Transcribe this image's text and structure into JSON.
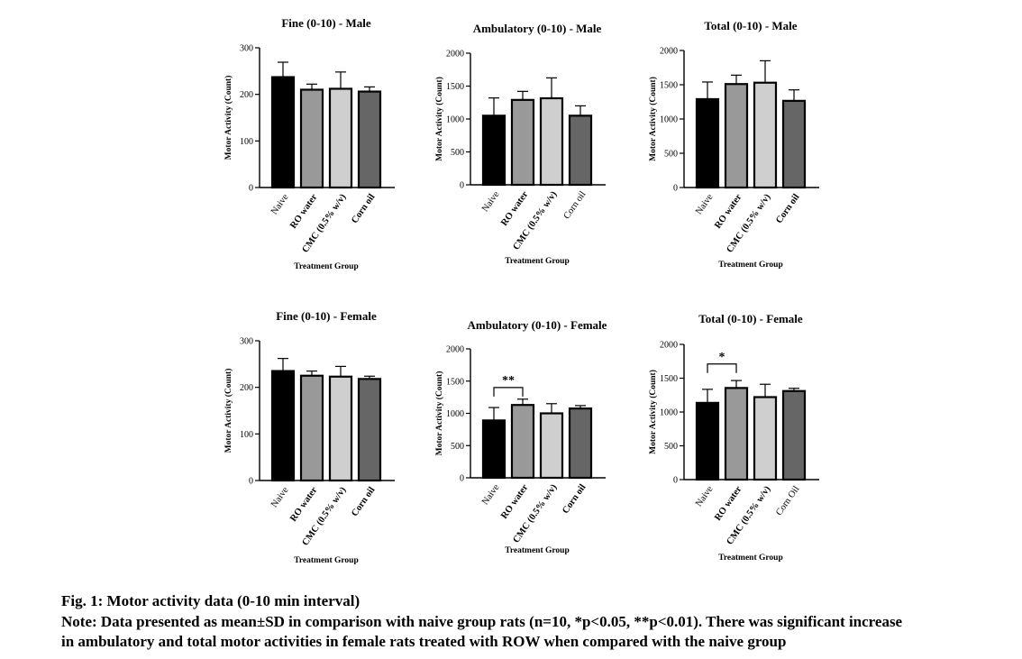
{
  "chart_data": [
    {
      "type": "bar",
      "title": "Fine (0-10) - Male",
      "xlabel": "Treatment Group",
      "ylabel": "Motor Activity (Count)",
      "ylim": [
        0,
        300
      ],
      "yticks": [
        "0",
        "100",
        "200",
        "300"
      ],
      "categories": [
        "Naive",
        "RO water",
        "CMC (0.5% w/v)",
        "Corn oil"
      ],
      "category_weights": [
        "normal",
        "bold",
        "bold",
        "bold"
      ],
      "values": [
        237,
        210,
        212,
        206
      ],
      "errors": [
        32,
        12,
        36,
        10
      ],
      "colors": [
        "#000000",
        "#999999",
        "#cfcfcf",
        "#666666"
      ],
      "significance": []
    },
    {
      "type": "bar",
      "title": "Ambulatory (0-10) - Male",
      "xlabel": "Treatment Group",
      "ylabel": "Motor Activity (Count)",
      "ylim": [
        0,
        2000
      ],
      "yticks": [
        "0",
        "500",
        "1000",
        "1500",
        "2000"
      ],
      "categories": [
        "Naive",
        "RO water",
        "CMC (0.5% w/v)",
        "Corn oil"
      ],
      "category_weights": [
        "normal",
        "bold",
        "bold",
        "normal"
      ],
      "values": [
        1050,
        1290,
        1315,
        1050
      ],
      "errors": [
        270,
        130,
        310,
        150
      ],
      "colors": [
        "#000000",
        "#999999",
        "#cfcfcf",
        "#666666"
      ],
      "significance": []
    },
    {
      "type": "bar",
      "title": "Total (0-10) - Male",
      "xlabel": "Treatment Group",
      "ylabel": "Motor Activity (Count)",
      "ylim": [
        0,
        2000
      ],
      "yticks": [
        "0",
        "500",
        "1000",
        "1500",
        "2000"
      ],
      "categories": [
        "Naive",
        "RO water",
        "CMC (0.5% w/v)",
        "Corn oil"
      ],
      "category_weights": [
        "normal",
        "bold",
        "bold",
        "bold"
      ],
      "values": [
        1290,
        1510,
        1530,
        1265
      ],
      "errors": [
        250,
        130,
        320,
        160
      ],
      "colors": [
        "#000000",
        "#999999",
        "#cfcfcf",
        "#666666"
      ],
      "significance": []
    },
    {
      "type": "bar",
      "title": "Fine (0-10) - Female",
      "xlabel": "Treatment Group",
      "ylabel": "Motor Activity (Count)",
      "ylim": [
        0,
        300
      ],
      "yticks": [
        "0",
        "100",
        "200",
        "300"
      ],
      "categories": [
        "Naive",
        "RO water",
        "CMC (0.5% w/v)",
        "Corn oil"
      ],
      "category_weights": [
        "normal",
        "bold",
        "bold",
        "bold"
      ],
      "values": [
        235,
        225,
        223,
        218
      ],
      "errors": [
        27,
        10,
        22,
        6
      ],
      "colors": [
        "#000000",
        "#999999",
        "#cfcfcf",
        "#666666"
      ],
      "significance": []
    },
    {
      "type": "bar",
      "title": "Ambulatory (0-10) - Female",
      "xlabel": "Treatment Group",
      "ylabel": "Motor Activity (Count)",
      "ylim": [
        0,
        2000
      ],
      "yticks": [
        "0",
        "500",
        "1000",
        "1500",
        "2000"
      ],
      "categories": [
        "Naive",
        "RO water",
        "CMC (0.5% w/v)",
        "Corn oil"
      ],
      "category_weights": [
        "normal",
        "bold",
        "bold",
        "bold"
      ],
      "values": [
        890,
        1130,
        1000,
        1075
      ],
      "errors": [
        200,
        90,
        150,
        45
      ],
      "colors": [
        "#000000",
        "#999999",
        "#cfcfcf",
        "#666666"
      ],
      "significance": [
        {
          "from": 0,
          "to": 1,
          "label": "**",
          "level": 1400
        }
      ]
    },
    {
      "type": "bar",
      "title": "Total (0-10) - Female",
      "xlabel": "Treatment Group",
      "ylabel": "Motor Activity (Count)",
      "ylim": [
        0,
        2000
      ],
      "yticks": [
        "0",
        "500",
        "1000",
        "1500",
        "2000"
      ],
      "categories": [
        "Naive",
        "RO water",
        "CMC (0.5% w/v)",
        "Corn Oil"
      ],
      "category_weights": [
        "normal",
        "bold",
        "bold",
        "normal"
      ],
      "values": [
        1135,
        1355,
        1220,
        1310
      ],
      "errors": [
        200,
        110,
        190,
        40
      ],
      "colors": [
        "#000000",
        "#999999",
        "#cfcfcf",
        "#666666"
      ],
      "significance": [
        {
          "from": 0,
          "to": 1,
          "label": "*",
          "level": 1710
        }
      ]
    }
  ],
  "caption": {
    "title": "Fig. 1: Motor activity data (0-10 min interval)",
    "note_line1": "Note: Data presented as mean±SD in comparison with naive group rats (n=10, *p<0.05, **p<0.01). There was significant increase",
    "note_line2": "in ambulatory and total motor activities in female rats treated with ROW when compared with the naive group"
  }
}
